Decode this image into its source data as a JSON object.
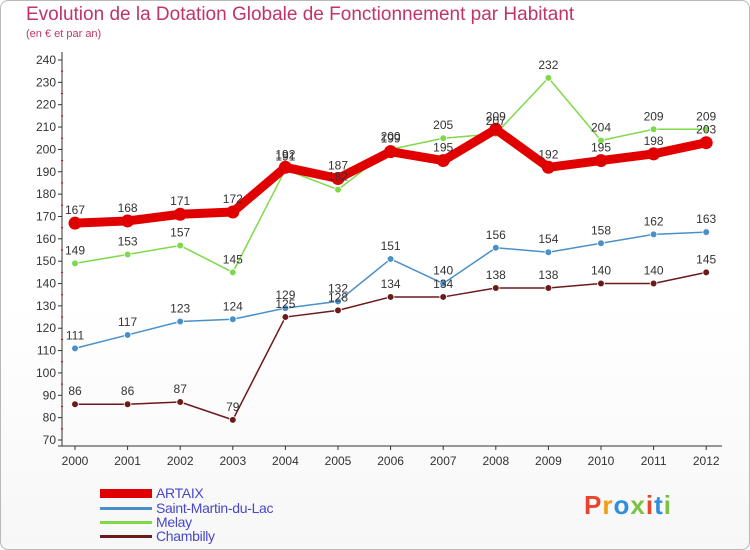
{
  "header": {
    "title": "Evolution de la Dotation Globale de Fonctionnement par Habitant",
    "subtitle": "(en € et par an)"
  },
  "logo": {
    "text": "Proxiti",
    "colors": [
      "#e8452c",
      "#f39c12",
      "#2f8fdc",
      "#7cc242",
      "#e8452c",
      "#2f8fdc",
      "#7cc242"
    ]
  },
  "chart_data": {
    "type": "line",
    "x": [
      "2000",
      "2001",
      "2002",
      "2003",
      "2004",
      "2005",
      "2006",
      "2007",
      "2008",
      "2009",
      "2010",
      "2011",
      "2012"
    ],
    "ylim": [
      70,
      240
    ],
    "yticks": [
      70,
      80,
      90,
      100,
      110,
      120,
      130,
      140,
      150,
      160,
      170,
      180,
      190,
      200,
      210,
      220,
      230,
      240
    ],
    "grid": false,
    "legend_position": "bottom-left",
    "series": [
      {
        "name": "ARTAIX",
        "color": "#e00000",
        "values": [
          167,
          168,
          171,
          172,
          192,
          187,
          199,
          195,
          209,
          192,
          195,
          198,
          203
        ]
      },
      {
        "name": "Saint-Martin-du-Lac",
        "color": "#4a90c8",
        "values": [
          111,
          117,
          123,
          124,
          129,
          132,
          151,
          140,
          156,
          154,
          158,
          162,
          163
        ]
      },
      {
        "name": "Melay",
        "color": "#7fd94a",
        "values": [
          149,
          153,
          157,
          145,
          191,
          182,
          200,
          205,
          207,
          232,
          204,
          209,
          209
        ]
      },
      {
        "name": "Chambilly",
        "color": "#6b1a1a",
        "values": [
          86,
          86,
          87,
          79,
          125,
          128,
          134,
          134,
          138,
          138,
          140,
          140,
          145
        ]
      }
    ]
  }
}
